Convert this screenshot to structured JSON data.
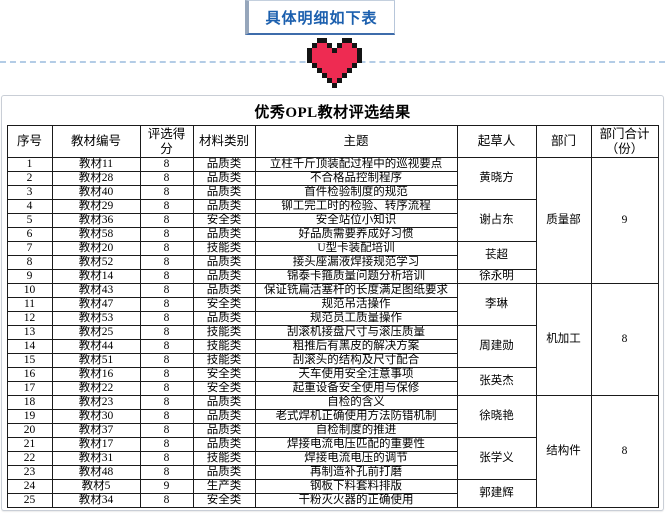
{
  "banner": {
    "label": "具体明细如下表"
  },
  "heart_icon": {
    "fill": "#ee2b52",
    "outline": "#141414"
  },
  "colors": {
    "banner_text": "#1b5fae",
    "banner_border_bottom": "#3e6cab",
    "dashed_line": "#b3cce6",
    "table_border": "#1a1a1a"
  },
  "table": {
    "title": "优秀OPL教材评选结果",
    "columns": [
      "序号",
      "教材编号",
      "评选得分",
      "材料类别",
      "主题",
      "起草人",
      "部门",
      "部门合计\n（份）"
    ],
    "rows": [
      [
        "1",
        "教材11",
        "8",
        "品质类",
        "立柱千斤顶装配过程中的巡视要点"
      ],
      [
        "2",
        "教材28",
        "8",
        "品质类",
        "不合格品控制程序"
      ],
      [
        "3",
        "教材40",
        "8",
        "品质类",
        "首件检验制度的规范"
      ],
      [
        "4",
        "教材29",
        "8",
        "品质类",
        "铆工完工时的检验、转序流程"
      ],
      [
        "5",
        "教材36",
        "8",
        "安全类",
        "安全站位小知识"
      ],
      [
        "6",
        "教材58",
        "8",
        "品质类",
        "好品质需要养成好习惯"
      ],
      [
        "7",
        "教材20",
        "8",
        "技能类",
        "U型卡装配培训"
      ],
      [
        "8",
        "教材52",
        "8",
        "品质类",
        "接头座漏液焊接规范学习"
      ],
      [
        "9",
        "教材14",
        "8",
        "品质类",
        "锦泰卡箍质量问题分析培训"
      ],
      [
        "10",
        "教材43",
        "8",
        "品质类",
        "保证铣扁活塞杆的长度满足图纸要求"
      ],
      [
        "11",
        "教材47",
        "8",
        "安全类",
        "规范吊活操作"
      ],
      [
        "12",
        "教材53",
        "8",
        "品质类",
        "规范员工质量操作"
      ],
      [
        "13",
        "教材25",
        "8",
        "技能类",
        "刮滚机接盘尺寸与滚压质量"
      ],
      [
        "14",
        "教材44",
        "8",
        "技能类",
        "粗推后有黑皮的解决方案"
      ],
      [
        "15",
        "教材51",
        "8",
        "技能类",
        "刮滚头的结构及尺寸配合"
      ],
      [
        "16",
        "教材16",
        "8",
        "安全类",
        "天车使用安全注意事项"
      ],
      [
        "17",
        "教材22",
        "8",
        "安全类",
        "起重设备安全使用与保修"
      ],
      [
        "18",
        "教材23",
        "8",
        "品质类",
        "自检的含义"
      ],
      [
        "19",
        "教材30",
        "8",
        "品质类",
        "老式焊机正确使用方法防错机制"
      ],
      [
        "20",
        "教材37",
        "8",
        "品质类",
        "自检制度的推进"
      ],
      [
        "21",
        "教材17",
        "8",
        "品质类",
        "焊接电流电压匹配的重要性"
      ],
      [
        "22",
        "教材31",
        "8",
        "技能类",
        "焊接电流电压的调节"
      ],
      [
        "23",
        "教材48",
        "8",
        "品质类",
        "再制造补孔前打磨"
      ],
      [
        "24",
        "教材5",
        "9",
        "生产类",
        "钢板下料套料排版"
      ],
      [
        "25",
        "教材34",
        "8",
        "安全类",
        "干粉灭火器的正确使用"
      ]
    ],
    "drafters": [
      {
        "name": "黄晓方",
        "start": 0,
        "span": 3
      },
      {
        "name": "谢占东",
        "start": 3,
        "span": 3
      },
      {
        "name": "苌超",
        "start": 6,
        "span": 2
      },
      {
        "name": "徐永明",
        "start": 8,
        "span": 1
      },
      {
        "name": "李琳",
        "start": 9,
        "span": 3
      },
      {
        "name": "周建勋",
        "start": 12,
        "span": 3
      },
      {
        "name": "张英杰",
        "start": 15,
        "span": 2
      },
      {
        "name": "徐晓艳",
        "start": 17,
        "span": 3
      },
      {
        "name": "张学义",
        "start": 20,
        "span": 3
      },
      {
        "name": "郭建辉",
        "start": 23,
        "span": 2
      }
    ],
    "departments": [
      {
        "name": "质量部",
        "start": 0,
        "span": 9,
        "total": "9"
      },
      {
        "name": "机加工",
        "start": 9,
        "span": 8,
        "total": "8"
      },
      {
        "name": "结构件",
        "start": 17,
        "span": 8,
        "total": "8"
      }
    ]
  }
}
